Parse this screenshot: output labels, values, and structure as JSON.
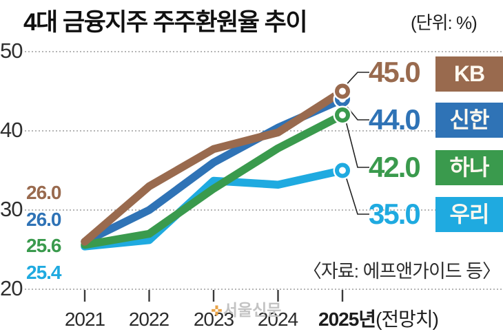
{
  "title": "4대 금융지주 주주환원율 추이",
  "unit_label": "(단위: %)",
  "source": "〈자료: 에프앤가이드 등〉",
  "watermark": "서울신문",
  "chart_data": {
    "type": "line",
    "title": "4대 금융지주 주주환원율 추이",
    "unit": "%",
    "x": [
      "2021",
      "2022",
      "2023",
      "2024",
      "2025"
    ],
    "x_axis": {
      "labels": [
        "2021",
        "2022",
        "2023",
        "2024"
      ],
      "last_bold": "2025년",
      "last_suffix": "(전망치)"
    },
    "ylim": [
      20,
      50
    ],
    "yticks": [
      20,
      30,
      40,
      50
    ],
    "grid": "dotted-horizontal",
    "legend_position": "right",
    "series": [
      {
        "name": "KB",
        "color": "#996a4e",
        "values": [
          26.0,
          33.0,
          37.7,
          39.8,
          45.0
        ],
        "start_label": "26.0",
        "end_label": "45.0"
      },
      {
        "name": "신한",
        "color": "#2f73b6",
        "values": [
          26.0,
          30.0,
          36.0,
          40.4,
          44.0
        ],
        "start_label": "26.0",
        "end_label": "44.0"
      },
      {
        "name": "하나",
        "color": "#3a9a4d",
        "values": [
          25.6,
          27.0,
          32.7,
          37.8,
          42.0
        ],
        "start_label": "25.6",
        "end_label": "42.0"
      },
      {
        "name": "우리",
        "color": "#1faae0",
        "values": [
          25.4,
          26.2,
          33.7,
          33.2,
          35.0
        ],
        "start_label": "25.4",
        "end_label": "35.0"
      }
    ]
  }
}
